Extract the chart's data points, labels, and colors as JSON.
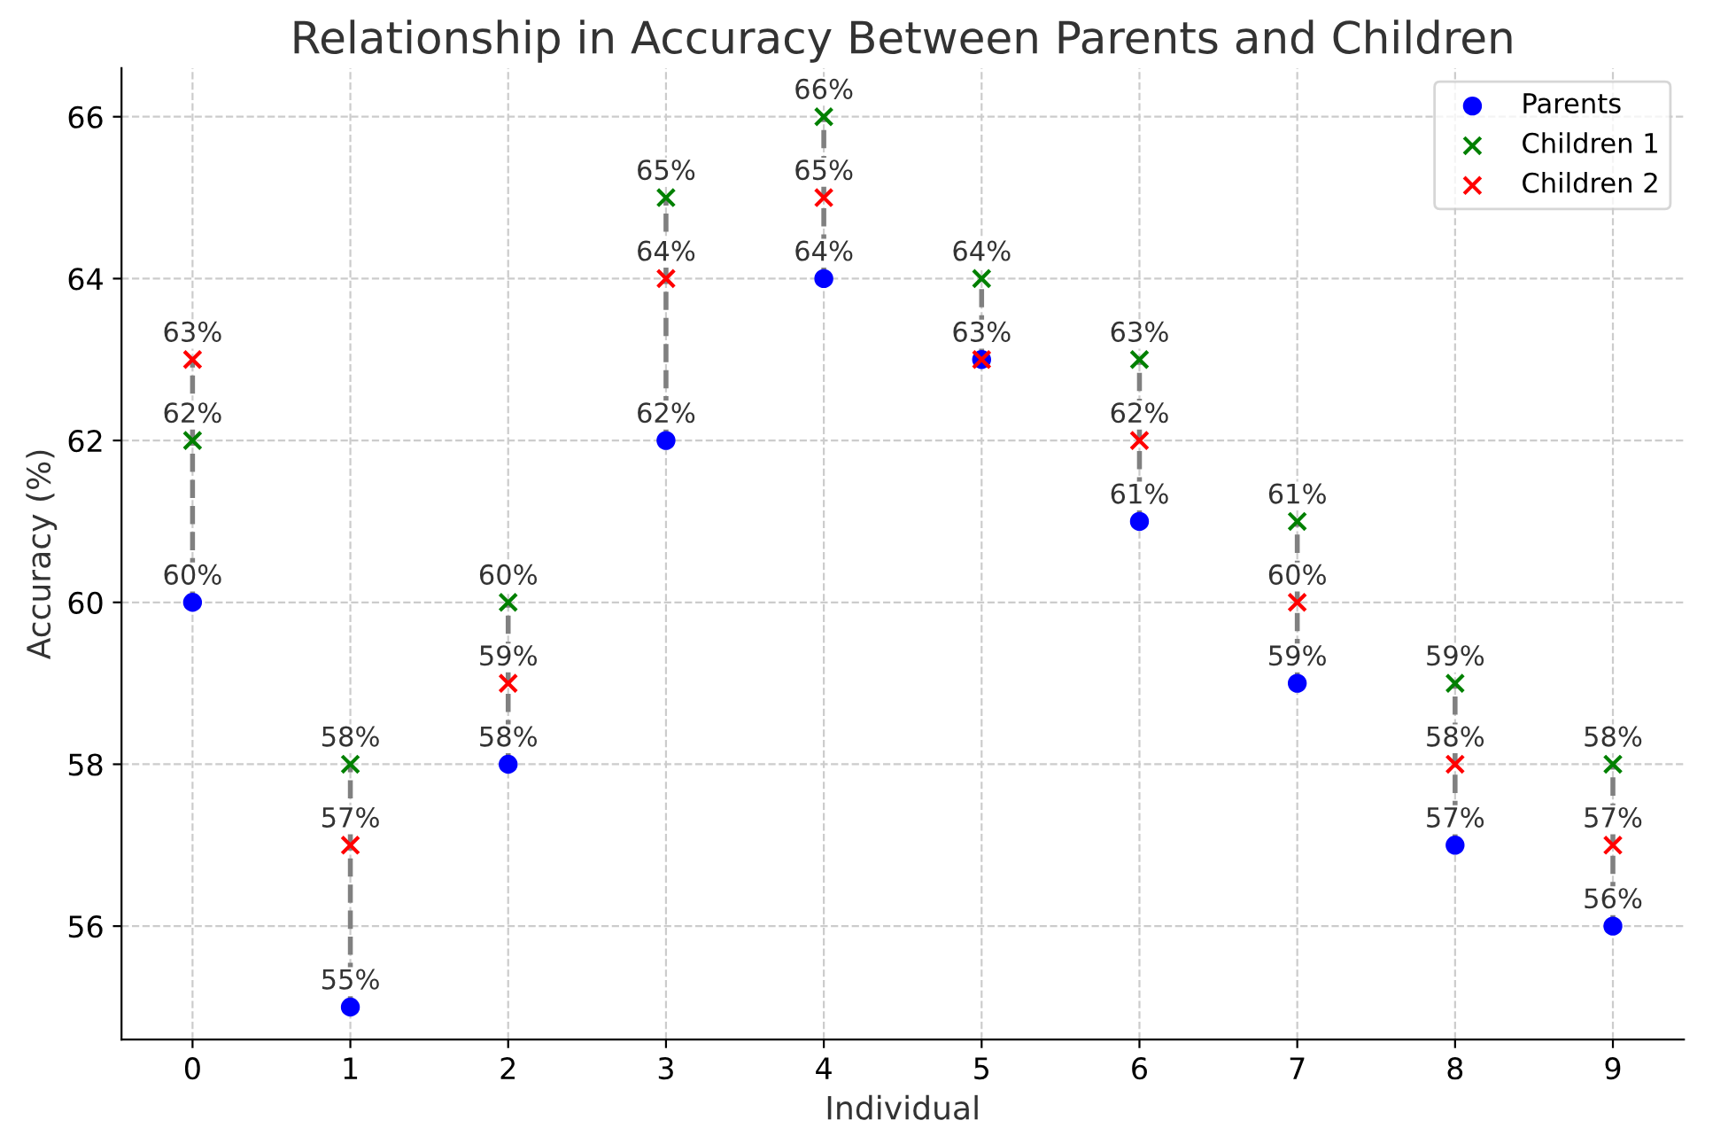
{
  "chart_data": {
    "type": "scatter",
    "title": "Relationship in Accuracy Between Parents and Children",
    "xlabel": "Individual",
    "ylabel": "Accuracy (%)",
    "x": [
      0,
      1,
      2,
      3,
      4,
      5,
      6,
      7,
      8,
      9
    ],
    "series": [
      {
        "name": "Parents",
        "color": "#0000ff",
        "marker": "circle",
        "values": [
          60,
          55,
          58,
          62,
          64,
          63,
          61,
          59,
          57,
          56
        ],
        "value_labels": [
          "60%",
          "55%",
          "58%",
          "62%",
          "64%",
          null,
          "61%",
          "59%",
          "57%",
          "56%"
        ]
      },
      {
        "name": "Children 1",
        "color": "#008000",
        "marker": "cross",
        "values": [
          62,
          58,
          60,
          65,
          66,
          64,
          63,
          61,
          59,
          58
        ],
        "value_labels": [
          "62%",
          "58%",
          "60%",
          "65%",
          "66%",
          "64%",
          "63%",
          "61%",
          "59%",
          "58%"
        ]
      },
      {
        "name": "Children 2",
        "color": "#ff0000",
        "marker": "cross",
        "values": [
          63,
          57,
          59,
          64,
          65,
          63,
          62,
          60,
          58,
          57
        ],
        "value_labels": [
          "63%",
          "57%",
          "59%",
          "64%",
          "65%",
          "63%",
          "62%",
          "60%",
          "58%",
          "57%"
        ]
      }
    ],
    "line_style": "dashed",
    "xlim": [
      -0.45,
      9.45
    ],
    "xticks": [
      0,
      1,
      2,
      3,
      4,
      5,
      6,
      7,
      8,
      9
    ],
    "ylim": [
      54.6,
      66.6
    ],
    "yticks": [
      56,
      58,
      60,
      62,
      64,
      66
    ],
    "grid": true,
    "legend": "top right"
  }
}
